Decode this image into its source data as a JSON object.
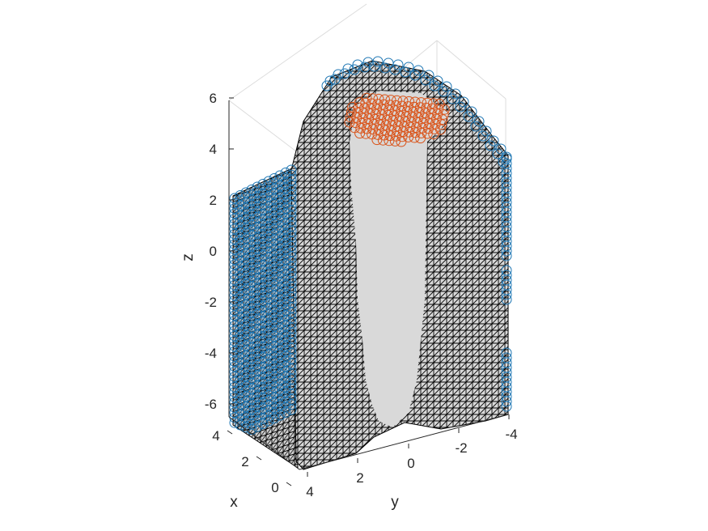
{
  "figure": {
    "background": "#ffffff"
  },
  "axes": {
    "z_label": "z",
    "x_label": "x",
    "y_label": "y",
    "z_ticks": [
      "6",
      "4",
      "2",
      "0",
      "-2",
      "-4",
      "-6"
    ],
    "x_ticks": [
      "4",
      "2",
      "0"
    ],
    "y_ticks": [
      "4",
      "2",
      "0",
      "-2",
      "-4"
    ],
    "z_range": [
      -7,
      6
    ],
    "x_range": [
      0,
      4
    ],
    "y_range": [
      -4,
      4
    ],
    "grid": true,
    "box": false
  },
  "colors": {
    "mesh_face": "#d9d9d9",
    "mesh_edge": "#000000",
    "cut_face": "#d9d9d9",
    "boundary_markers": "#1f77b4",
    "top_markers": "#d95319"
  },
  "chart_data": {
    "type": "scatter",
    "title": "",
    "xlabel": "x",
    "ylabel": "y",
    "zlabel": "z",
    "xlim": [
      0,
      4
    ],
    "ylim": [
      -4,
      4
    ],
    "zlim": [
      -7,
      6
    ],
    "grid": true,
    "series": [
      {
        "color": "#1f77b4",
        "marker": "circle"
      },
      {
        "color": "#d95319",
        "marker": "circle"
      }
    ]
  }
}
